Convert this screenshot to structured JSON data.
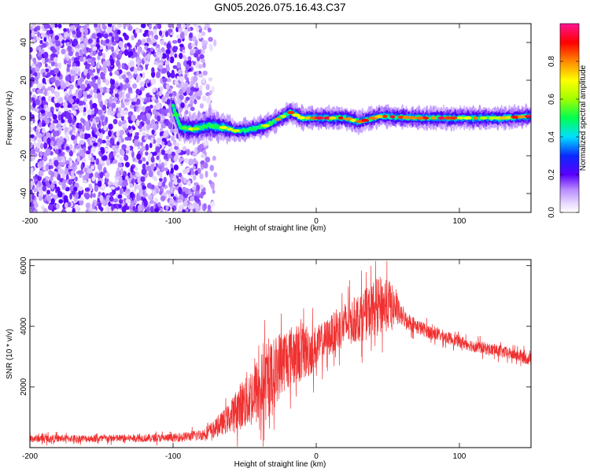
{
  "title": "GN05.2026.075.16.43.C37",
  "colors": {
    "snr_line": "#f03030",
    "spec_dark": "#5a00ff",
    "background": "#ffffff"
  },
  "chart_data": [
    {
      "type": "heatmap",
      "name": "spectrogram",
      "title": "GN05.2026.075.16.43.C37",
      "xlabel": "Height of straight line (km)",
      "ylabel": "Frequency (Hz)",
      "xlim": [
        -200,
        150
      ],
      "ylim": [
        -50,
        50
      ],
      "x_ticks": [
        -200,
        -100,
        0,
        100
      ],
      "x_tick_labels": [
        "-200",
        "-100",
        "0",
        "100"
      ],
      "y_ticks": [
        -40,
        -20,
        0,
        20,
        40
      ],
      "y_tick_labels": [
        "-40",
        "-20",
        "0",
        "20",
        "40"
      ],
      "noise_region_x": [
        -200,
        -70
      ],
      "signal_start_x": -100,
      "signal_track": [
        {
          "x": -100,
          "y": 6
        },
        {
          "x": -95,
          "y": -5
        },
        {
          "x": -85,
          "y": -6
        },
        {
          "x": -75,
          "y": -4
        },
        {
          "x": -65,
          "y": -5
        },
        {
          "x": -55,
          "y": -7
        },
        {
          "x": -45,
          "y": -6
        },
        {
          "x": -35,
          "y": -4
        },
        {
          "x": -25,
          "y": 0
        },
        {
          "x": -18,
          "y": 3
        },
        {
          "x": -10,
          "y": 0
        },
        {
          "x": 0,
          "y": 0
        },
        {
          "x": 20,
          "y": 0
        },
        {
          "x": 30,
          "y": -2
        },
        {
          "x": 45,
          "y": 1
        },
        {
          "x": 70,
          "y": 0
        },
        {
          "x": 100,
          "y": 0
        },
        {
          "x": 130,
          "y": 0
        },
        {
          "x": 150,
          "y": 1
        }
      ],
      "colorbar": {
        "label": "Normalized spectral amplitude",
        "range": [
          0,
          1
        ],
        "ticks": [
          0.0,
          0.2,
          0.4,
          0.6,
          0.8
        ],
        "tick_labels": [
          "0.0",
          "0.2",
          "0.4",
          "0.6",
          "0.8"
        ],
        "colormap": [
          {
            "v": 0.0,
            "color": "#ffffff"
          },
          {
            "v": 0.05,
            "color": "#e6d6ff"
          },
          {
            "v": 0.12,
            "color": "#b98cff"
          },
          {
            "v": 0.2,
            "color": "#5a00ff"
          },
          {
            "v": 0.3,
            "color": "#0a28ff"
          },
          {
            "v": 0.4,
            "color": "#00e0ff"
          },
          {
            "v": 0.5,
            "color": "#00ff50"
          },
          {
            "v": 0.6,
            "color": "#a0ff00"
          },
          {
            "v": 0.7,
            "color": "#ffff00"
          },
          {
            "v": 0.8,
            "color": "#ff8800"
          },
          {
            "v": 0.9,
            "color": "#ff0000"
          },
          {
            "v": 1.0,
            "color": "#ff1493"
          }
        ]
      }
    },
    {
      "type": "line",
      "name": "snr",
      "xlabel": "Height of straight line (km)",
      "ylabel": "SNR (10 * v/v)",
      "xlim": [
        -200,
        150
      ],
      "ylim": [
        0,
        6200
      ],
      "x_ticks": [
        -200,
        -100,
        0,
        100
      ],
      "x_tick_labels": [
        "-200",
        "-100",
        "0",
        "100"
      ],
      "y_ticks": [
        2000,
        4000,
        6000
      ],
      "y_tick_labels": [
        "2000",
        "4000",
        "6000"
      ],
      "series": [
        {
          "name": "SNR",
          "envelope": {
            "x": [
              -200,
              -150,
              -100,
              -80,
              -70,
              -60,
              -55,
              -50,
              -45,
              -40,
              -35,
              -30,
              -25,
              -20,
              -15,
              -10,
              -5,
              0,
              5,
              10,
              15,
              20,
              25,
              30,
              35,
              40,
              45,
              50,
              55,
              60,
              70,
              80,
              90,
              100,
              110,
              120,
              130,
              140,
              150
            ],
            "mean": [
              300,
              300,
              320,
              420,
              650,
              1000,
              1300,
              1500,
              1700,
              1900,
              2100,
              2400,
              2800,
              3000,
              3050,
              3150,
              3200,
              3300,
              3500,
              3700,
              3900,
              4050,
              4150,
              4300,
              4400,
              4600,
              4700,
              4750,
              4600,
              4300,
              4000,
              3800,
              3650,
              3500,
              3350,
              3250,
              3150,
              3050,
              2900
            ],
            "noise": [
              120,
              120,
              130,
              180,
              300,
              500,
              700,
              900,
              1050,
              1150,
              1250,
              1200,
              1100,
              1050,
              1000,
              950,
              900,
              700,
              650,
              650,
              700,
              750,
              750,
              800,
              850,
              900,
              950,
              900,
              600,
              300,
              250,
              220,
              200,
              200,
              200,
              200,
              200,
              200,
              200
            ]
          }
        }
      ]
    }
  ]
}
